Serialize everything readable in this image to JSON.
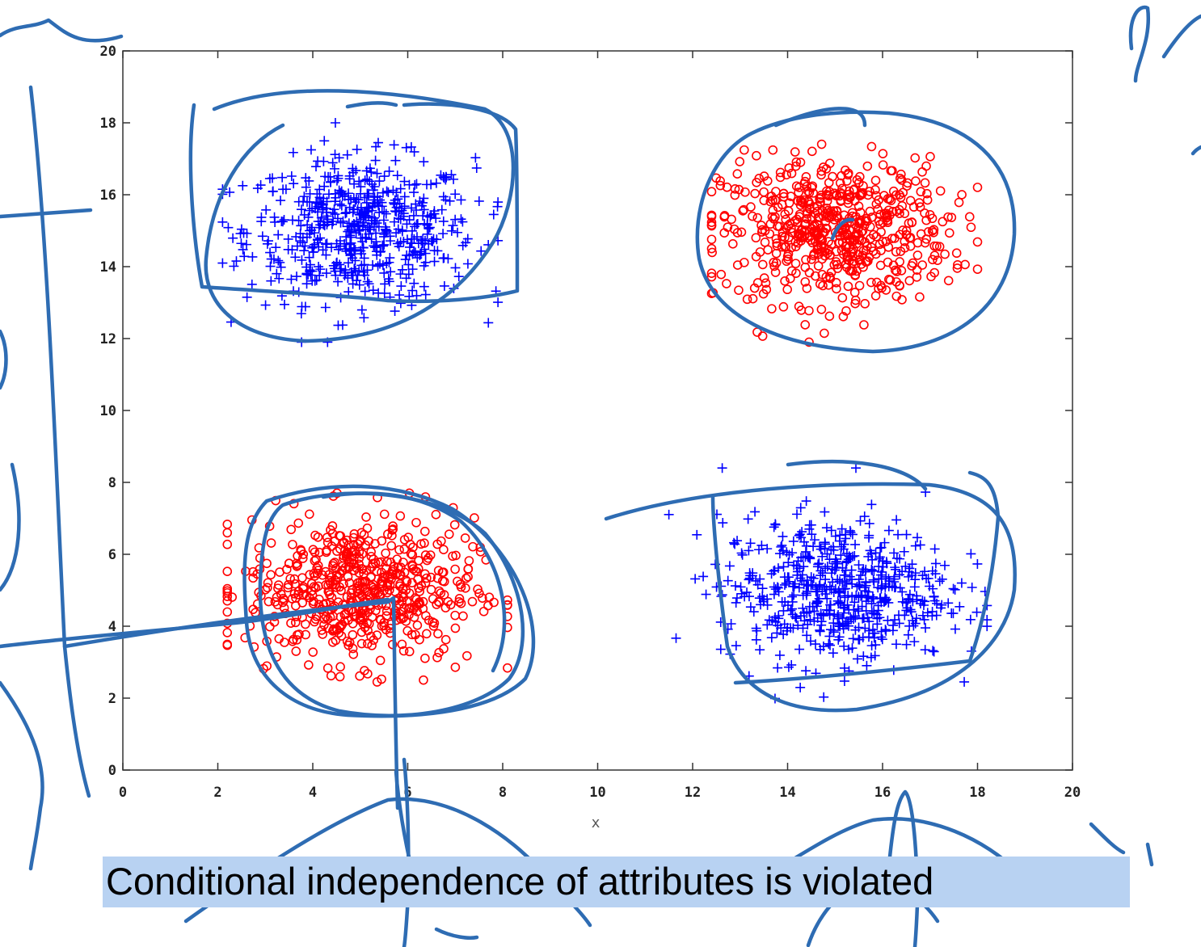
{
  "chart_data": {
    "type": "scatter",
    "title": "",
    "xlabel": "x",
    "ylabel": "",
    "xlim": [
      0,
      20
    ],
    "ylim": [
      0,
      20
    ],
    "xticks": [
      0,
      2,
      4,
      6,
      8,
      10,
      12,
      14,
      16,
      18,
      20
    ],
    "yticks": [
      0,
      2,
      4,
      6,
      8,
      10,
      12,
      14,
      16,
      18,
      20
    ],
    "grid": false,
    "legend": "none",
    "series": [
      {
        "marker": "+",
        "color": "#0000ff",
        "center": [
          5,
          15
        ],
        "spread": [
          1.2,
          1.0
        ],
        "points_approx": 600,
        "range_x": [
          2.1,
          7.9
        ],
        "range_y": [
          11.9,
          18.0
        ]
      },
      {
        "marker": "o",
        "color": "#ff0000",
        "center": [
          15,
          15
        ],
        "spread": [
          1.2,
          1.0
        ],
        "points_approx": 600,
        "range_x": [
          12.4,
          18.0
        ],
        "range_y": [
          11.9,
          18.4
        ]
      },
      {
        "marker": "o",
        "color": "#ff0000",
        "center": [
          5,
          5
        ],
        "spread": [
          1.2,
          1.0
        ],
        "points_approx": 600,
        "range_x": [
          2.2,
          8.1
        ],
        "range_y": [
          1.3,
          7.7
        ]
      },
      {
        "marker": "+",
        "color": "#0000ff",
        "center": [
          15,
          5
        ],
        "spread": [
          1.2,
          1.0
        ],
        "points_approx": 600,
        "range_x": [
          11.5,
          18.2
        ],
        "range_y": [
          1.3,
          8.4
        ]
      }
    ]
  },
  "annotation_ink_color": "#2e6cb3",
  "caption": "Conditional independence of attributes is violated",
  "caption_highlight_color": "#b8d2f2"
}
